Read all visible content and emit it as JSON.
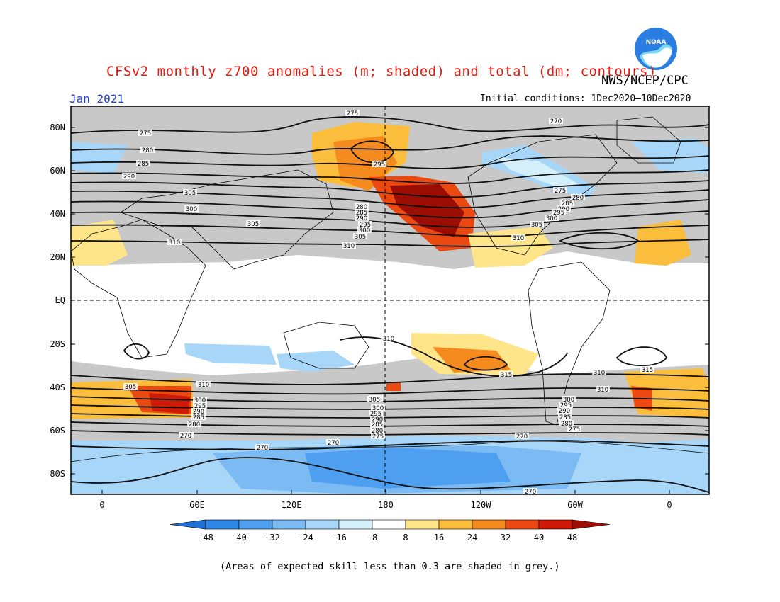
{
  "header": {
    "title": "CFSv2 monthly z700 anomalies (m; shaded) and total (dm; contours)",
    "org": "NWS/NCEP/CPC",
    "month": "Jan 2021",
    "initial_conditions": "Initial conditions: 1Dec2020—10Dec2020",
    "logo_text": "NOAA"
  },
  "axes": {
    "y_labels": [
      "80N",
      "60N",
      "40N",
      "20N",
      "EQ",
      "20S",
      "40S",
      "60S",
      "80S"
    ],
    "x_labels": [
      "0",
      "60E",
      "120E",
      "180",
      "120W",
      "60W",
      "0"
    ]
  },
  "contour_labels": [
    "275",
    "270",
    "275",
    "280",
    "285",
    "290",
    "305",
    "300",
    "295",
    "280",
    "285",
    "290",
    "295",
    "300",
    "305",
    "310",
    "310",
    "305",
    "310",
    "270",
    "275",
    "280",
    "285",
    "290",
    "295",
    "300",
    "305",
    "310",
    "310",
    "315",
    "315",
    "310",
    "305",
    "305",
    "310",
    "300",
    "295",
    "290",
    "285",
    "280",
    "275",
    "270",
    "270",
    "270",
    "305",
    "300",
    "295",
    "290",
    "285",
    "280",
    "275",
    "300",
    "295",
    "290",
    "285",
    "280",
    "275",
    "270",
    "270",
    "305"
  ],
  "colorbar": {
    "ticks": [
      "-48",
      "-40",
      "-32",
      "-24",
      "-16",
      "-8",
      "8",
      "16",
      "24",
      "32",
      "40",
      "48"
    ],
    "colors": [
      "#1f6fd6",
      "#2e86e6",
      "#4f9ff0",
      "#7cbaf4",
      "#a8d6f8",
      "#d4f1fb",
      "#ffffff",
      "#ffe58a",
      "#fbbe3c",
      "#f58a1f",
      "#ea4a12",
      "#cf1a08",
      "#9c0e04"
    ]
  },
  "footer": "(Areas of expected skill less than 0.3 are shaded in grey.)",
  "colors": {
    "title": "#e8190c",
    "month": "#1f3fd8",
    "grey": "#c0c0c0"
  }
}
